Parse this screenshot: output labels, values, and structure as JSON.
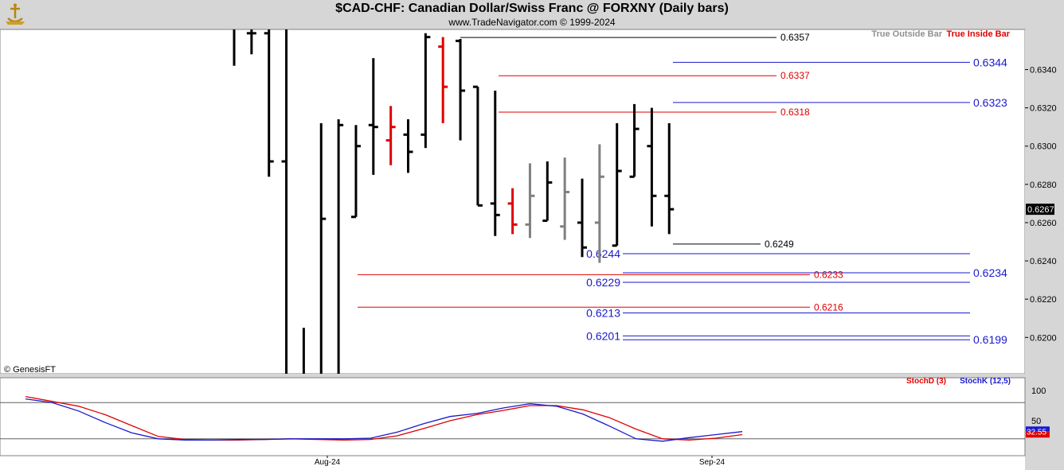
{
  "header": {
    "title": "$CAD-CHF:  Canadian Dollar/Swiss Franc @ FORXNY  (Daily bars)",
    "subtitle": "www.TradeNavigator.com © 1999-2024",
    "copyright": "© GenesisFT"
  },
  "legend": {
    "outside": "True Outside Bar",
    "inside": "True Inside Bar",
    "stochD": "StochD (3)",
    "stochK": "StochK (12,5)"
  },
  "colors": {
    "bar": "#000000",
    "outside": "#808080",
    "inside": "#e00000",
    "blueLevel": "#1a1acc",
    "redLevel": "#e00000",
    "header_bg": "#d6d6d6"
  },
  "chart_data": {
    "type": "ohlc",
    "ylim": [
      0.6181,
      0.6361
    ],
    "y_ticks": [
      "0.6340",
      "0.6320",
      "0.6300",
      "0.6280",
      "0.6260",
      "0.6240",
      "0.6220",
      "0.6200"
    ],
    "x_ticks": [
      "Aug-24",
      "Sep-24"
    ],
    "last_value": "0.6267",
    "bars": [
      {
        "o": null,
        "h": 0.6361,
        "l": 0.6342,
        "c": null,
        "type": "normal"
      },
      {
        "o": 0.6359,
        "h": 0.6361,
        "l": 0.6348,
        "c": 0.6359,
        "type": "normal"
      },
      {
        "o": 0.6359,
        "h": 0.6361,
        "l": 0.6284,
        "c": 0.6292,
        "type": "normal"
      },
      {
        "o": 0.6292,
        "h": 0.6361,
        "l": 0.6181,
        "c": null,
        "type": "normal"
      },
      {
        "o": null,
        "h": 0.6205,
        "l": 0.6181,
        "c": null,
        "type": "normal"
      },
      {
        "o": null,
        "h": 0.6312,
        "l": 0.6181,
        "c": 0.6262,
        "type": "normal"
      },
      {
        "o": null,
        "h": 0.6314,
        "l": 0.6181,
        "c": 0.6311,
        "type": "normal"
      },
      {
        "o": 0.6263,
        "h": 0.6311,
        "l": 0.6263,
        "c": 0.63,
        "type": "normal"
      },
      {
        "o": 0.6311,
        "h": 0.6346,
        "l": 0.6285,
        "c": 0.631,
        "type": "normal"
      },
      {
        "o": 0.6303,
        "h": 0.6321,
        "l": 0.629,
        "c": 0.631,
        "type": "inside"
      },
      {
        "o": 0.6306,
        "h": 0.6314,
        "l": 0.6286,
        "c": 0.6297,
        "type": "normal"
      },
      {
        "o": 0.6306,
        "h": 0.6359,
        "l": 0.6299,
        "c": 0.6357,
        "type": "normal"
      },
      {
        "o": 0.6352,
        "h": 0.6357,
        "l": 0.6312,
        "c": 0.6331,
        "type": "inside"
      },
      {
        "o": 0.6355,
        "h": 0.6356,
        "l": 0.6303,
        "c": 0.6329,
        "type": "normal"
      },
      {
        "o": 0.6331,
        "h": 0.6331,
        "l": 0.6269,
        "c": 0.6269,
        "type": "normal"
      },
      {
        "o": 0.627,
        "h": 0.6329,
        "l": 0.6253,
        "c": 0.6264,
        "type": "normal"
      },
      {
        "o": 0.627,
        "h": 0.6278,
        "l": 0.6254,
        "c": 0.6259,
        "type": "inside"
      },
      {
        "o": 0.6259,
        "h": 0.6291,
        "l": 0.6252,
        "c": 0.6274,
        "type": "outside"
      },
      {
        "o": 0.6261,
        "h": 0.6292,
        "l": 0.6261,
        "c": 0.6281,
        "type": "normal"
      },
      {
        "o": 0.6258,
        "h": 0.6294,
        "l": 0.6251,
        "c": 0.6276,
        "type": "outside"
      },
      {
        "o": 0.626,
        "h": 0.6283,
        "l": 0.6242,
        "c": 0.6247,
        "type": "normal"
      },
      {
        "o": 0.626,
        "h": 0.6301,
        "l": 0.6239,
        "c": 0.6284,
        "type": "outside"
      },
      {
        "o": 0.6248,
        "h": 0.6312,
        "l": 0.6248,
        "c": 0.6287,
        "type": "normal"
      },
      {
        "o": 0.6284,
        "h": 0.6322,
        "l": 0.6284,
        "c": 0.6309,
        "type": "normal"
      },
      {
        "o": 0.63,
        "h": 0.632,
        "l": 0.6258,
        "c": 0.6274,
        "type": "normal"
      },
      {
        "o": 0.6274,
        "h": 0.6312,
        "l": 0.6254,
        "c": 0.6267,
        "type": "normal"
      }
    ],
    "levels": [
      {
        "label": "0.6357",
        "value": 0.6357,
        "color": "black",
        "start": 13,
        "end": 975
      },
      {
        "label": "0.6344",
        "value": 0.6344,
        "color": "blue",
        "start": 845,
        "end": 1218
      },
      {
        "label": "0.6337",
        "value": 0.6337,
        "color": "red",
        "start": 626,
        "end": 975
      },
      {
        "label": "0.6323",
        "value": 0.6323,
        "color": "blue",
        "start": 845,
        "end": 1218
      },
      {
        "label": "0.6318",
        "value": 0.6318,
        "color": "red",
        "start": 626,
        "end": 975
      },
      {
        "label": "0.6249",
        "value": 0.6249,
        "color": "black",
        "start": 845,
        "end": 955
      },
      {
        "label": "0.6244",
        "value": 0.6244,
        "color": "blue",
        "start": 782,
        "end": 1218
      },
      {
        "label": "0.6234",
        "value": 0.6234,
        "color": "blue",
        "start": 782,
        "end": 1218
      },
      {
        "label": "0.6233",
        "value": 0.6233,
        "color": "red",
        "start": 449,
        "end": 1017
      },
      {
        "label": "0.6229",
        "value": 0.6229,
        "color": "blue",
        "start": 782,
        "end": 1218
      },
      {
        "label": "0.6216",
        "value": 0.6216,
        "color": "red",
        "start": 449,
        "end": 1017
      },
      {
        "label": "0.6213",
        "value": 0.6213,
        "color": "blue",
        "start": 782,
        "end": 1218
      },
      {
        "label": "0.6201",
        "value": 0.6201,
        "color": "blue",
        "start": 782,
        "end": 1218
      },
      {
        "label": "0.6199",
        "value": 0.6199,
        "color": "blue",
        "start": 782,
        "end": 1218
      }
    ],
    "stoch": {
      "ylim": [
        0,
        100
      ],
      "ticks": [
        "100",
        "50"
      ],
      "last_value": "32.55",
      "levels": [
        80,
        20
      ],
      "stochK": [
        86,
        80,
        66,
        47,
        30,
        20,
        18,
        18,
        19,
        19,
        20,
        20,
        20,
        21,
        31,
        45,
        57,
        62,
        71,
        78,
        74,
        61,
        41,
        20,
        16,
        22,
        27,
        32
      ],
      "stochD": [
        90,
        82,
        74,
        60,
        42,
        24,
        19,
        18,
        18,
        19,
        20,
        19,
        18,
        19,
        25,
        37,
        50,
        60,
        67,
        75,
        75,
        68,
        55,
        36,
        20,
        18,
        21,
        27
      ]
    }
  }
}
